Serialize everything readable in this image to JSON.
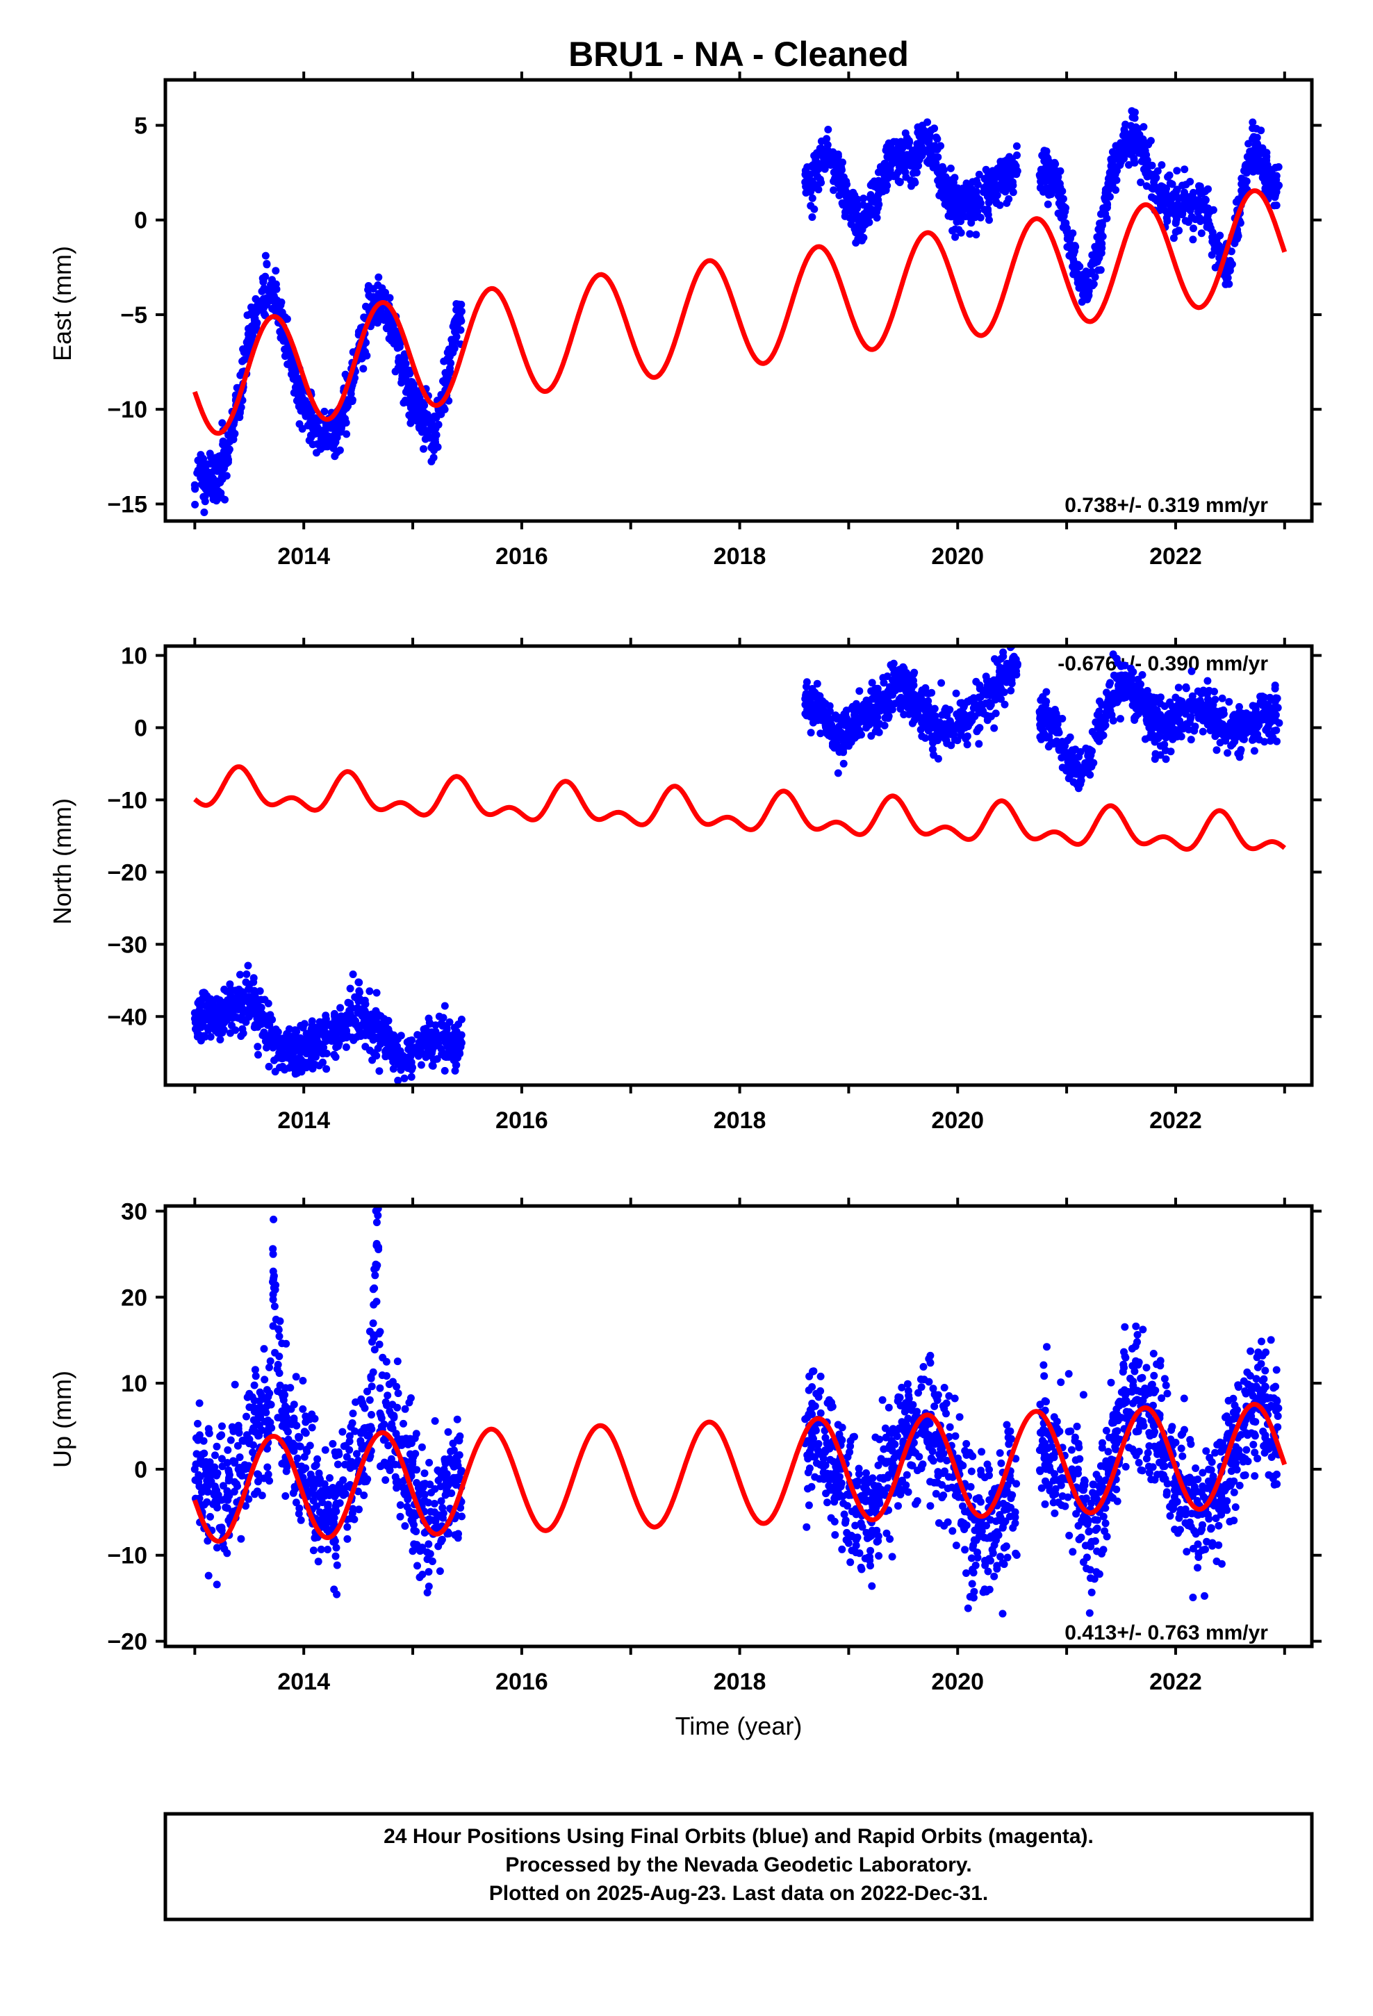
{
  "title": "BRU1  - NA - Cleaned",
  "xlabel": "Time (year)",
  "footer": {
    "line1": "24 Hour Positions Using Final Orbits (blue) and Rapid Orbits (magenta).",
    "line2": "Processed by the Nevada Geodetic Laboratory.",
    "line3": "Plotted on 2025-Aug-23. Last data on 2022-Dec-31."
  },
  "colors": {
    "data": "#0000ff",
    "model": "#ff0000",
    "frame": "#000000"
  },
  "chart_data": [
    {
      "type": "scatter",
      "panel": "east",
      "ylabel": "East (mm)",
      "rate_label": "0.738+/- 0.319 mm/yr",
      "xlim": [
        2012.73,
        2023.25
      ],
      "ylim": [
        -15.9,
        7.4
      ],
      "xticks": [
        2014,
        2016,
        2018,
        2020,
        2022
      ],
      "xtick_labels": [
        "2014",
        "2016",
        "2018",
        "2020",
        "2022"
      ],
      "yticks": [
        5,
        0,
        -5,
        -10,
        -15
      ],
      "ytick_labels": [
        "5",
        "0",
        "−5",
        "−10",
        "−15"
      ],
      "model": {
        "name": "",
        "intercept": -4.84,
        "t0": 2018.0,
        "slope": 0.738,
        "annual_amp": 2.9,
        "annual_phase_peak": 0.72
      },
      "series": [
        {
          "name": "",
          "segment": [
            2013.0,
            2013.25
          ],
          "points": [
            [
              2013.0,
              -14.0
            ],
            [
              2013.05,
              -13.0
            ],
            [
              2013.1,
              -14.2
            ],
            [
              2013.15,
              -13.4
            ],
            [
              2013.2,
              -13.8
            ],
            [
              2013.25,
              -13.1
            ]
          ]
        },
        {
          "name": "",
          "segment": [
            2013.25,
            2015.45
          ],
          "points": [
            [
              2013.3,
              -12.5
            ],
            [
              2013.4,
              -9.5
            ],
            [
              2013.5,
              -6.5
            ],
            [
              2013.6,
              -4.3
            ],
            [
              2013.7,
              -3.6
            ],
            [
              2013.8,
              -5.5
            ],
            [
              2013.9,
              -8.0
            ],
            [
              2014.0,
              -10.0
            ],
            [
              2014.1,
              -11.0
            ],
            [
              2014.2,
              -11.6
            ],
            [
              2014.3,
              -11.1
            ],
            [
              2014.4,
              -9.5
            ],
            [
              2014.5,
              -7.0
            ],
            [
              2014.6,
              -4.8
            ],
            [
              2014.7,
              -4.2
            ],
            [
              2014.8,
              -5.5
            ],
            [
              2014.9,
              -7.8
            ],
            [
              2015.0,
              -9.5
            ],
            [
              2015.1,
              -10.6
            ],
            [
              2015.2,
              -11.2
            ],
            [
              2015.3,
              -9.0
            ],
            [
              2015.4,
              -5.2
            ]
          ]
        },
        {
          "name": "",
          "segment": [
            2018.6,
            2020.55
          ],
          "points": [
            [
              2018.6,
              2.0
            ],
            [
              2018.7,
              2.5
            ],
            [
              2018.8,
              3.5
            ],
            [
              2018.9,
              2.5
            ],
            [
              2019.0,
              1.0
            ],
            [
              2019.1,
              -0.5
            ],
            [
              2019.4,
              3.0
            ],
            [
              2019.6,
              3.2
            ],
            [
              2019.7,
              4.2
            ],
            [
              2019.8,
              3.0
            ],
            [
              2019.9,
              1.5
            ],
            [
              2020.0,
              0.8
            ],
            [
              2020.1,
              0.8
            ],
            [
              2020.2,
              1.0
            ],
            [
              2020.3,
              1.8
            ],
            [
              2020.4,
              2.2
            ],
            [
              2020.5,
              2.5
            ]
          ]
        },
        {
          "name": "",
          "segment": [
            2020.75,
            2022.95
          ],
          "points": [
            [
              2020.8,
              2.5
            ],
            [
              2020.9,
              2.2
            ],
            [
              2021.0,
              -0.5
            ],
            [
              2021.1,
              -3.0
            ],
            [
              2021.2,
              -3.5
            ],
            [
              2021.3,
              -1.5
            ],
            [
              2021.4,
              2.0
            ],
            [
              2021.5,
              3.8
            ],
            [
              2021.6,
              4.5
            ],
            [
              2021.7,
              3.8
            ],
            [
              2021.8,
              2.0
            ],
            [
              2021.9,
              1.0
            ],
            [
              2022.0,
              0.5
            ],
            [
              2022.1,
              1.0
            ],
            [
              2022.2,
              0.8
            ],
            [
              2022.3,
              0.5
            ],
            [
              2022.4,
              -2.0
            ],
            [
              2022.5,
              -2.5
            ],
            [
              2022.6,
              1.0
            ],
            [
              2022.7,
              3.5
            ],
            [
              2022.8,
              3.0
            ],
            [
              2022.9,
              1.5
            ]
          ]
        }
      ]
    },
    {
      "type": "scatter",
      "panel": "north",
      "ylabel": "North (mm)",
      "rate_label": "-0.676+/- 0.390 mm/yr",
      "xlim": [
        2012.73,
        2023.25
      ],
      "ylim": [
        -49.5,
        11.3
      ],
      "xticks": [
        2014,
        2016,
        2018,
        2020,
        2022
      ],
      "xtick_labels": [
        "2014",
        "2016",
        "2018",
        "2020",
        "2022"
      ],
      "yticks": [
        10,
        0,
        -10,
        -20,
        -30,
        -40
      ],
      "ytick_labels": [
        "10",
        "0",
        "−10",
        "−20",
        "−30",
        "−40"
      ],
      "model": {
        "name": "",
        "intercept": -12.0,
        "t0": 2018.0,
        "slope": -0.676,
        "annual_amp": 2.0,
        "annual_phase_peak": 0.42,
        "semiannual_amp": 1.5,
        "semiannual_phase_peak": 0.4
      },
      "series": [
        {
          "name": "",
          "segment": [
            2013.0,
            2015.45
          ],
          "points": [
            [
              2013.0,
              -39.5
            ],
            [
              2013.2,
              -40.0
            ],
            [
              2013.4,
              -38.5
            ],
            [
              2013.5,
              -37.5
            ],
            [
              2013.6,
              -40.0
            ],
            [
              2013.7,
              -43.0
            ],
            [
              2013.8,
              -44.5
            ],
            [
              2013.9,
              -45.0
            ],
            [
              2014.0,
              -44.5
            ],
            [
              2014.2,
              -43.0
            ],
            [
              2014.4,
              -41.0
            ],
            [
              2014.5,
              -39.5
            ],
            [
              2014.6,
              -40.5
            ],
            [
              2014.7,
              -42.0
            ],
            [
              2014.8,
              -44.0
            ],
            [
              2014.9,
              -46.0
            ],
            [
              2015.0,
              -45.0
            ],
            [
              2015.1,
              -43.5
            ],
            [
              2015.2,
              -43.0
            ],
            [
              2015.3,
              -43.0
            ],
            [
              2015.4,
              -44.0
            ]
          ]
        },
        {
          "name": "",
          "segment": [
            2018.6,
            2020.55
          ],
          "points": [
            [
              2018.6,
              4.0
            ],
            [
              2018.7,
              2.5
            ],
            [
              2018.8,
              0.5
            ],
            [
              2018.9,
              -1.0
            ],
            [
              2019.0,
              -0.5
            ],
            [
              2019.1,
              1.0
            ],
            [
              2019.3,
              3.0
            ],
            [
              2019.4,
              5.0
            ],
            [
              2019.5,
              6.0
            ],
            [
              2019.7,
              1.5
            ],
            [
              2019.8,
              0.0
            ],
            [
              2019.9,
              -0.5
            ],
            [
              2020.0,
              0.5
            ],
            [
              2020.1,
              1.5
            ],
            [
              2020.2,
              3.0
            ],
            [
              2020.3,
              4.5
            ],
            [
              2020.4,
              6.5
            ],
            [
              2020.5,
              8.5
            ]
          ]
        },
        {
          "name": "",
          "segment": [
            2020.75,
            2022.95
          ],
          "points": [
            [
              2020.8,
              1.0
            ],
            [
              2020.9,
              0.5
            ],
            [
              2021.0,
              -4.0
            ],
            [
              2021.1,
              -6.0
            ],
            [
              2021.2,
              -4.0
            ],
            [
              2021.3,
              0.0
            ],
            [
              2021.4,
              4.0
            ],
            [
              2021.5,
              6.0
            ],
            [
              2021.6,
              4.5
            ],
            [
              2021.7,
              3.0
            ],
            [
              2021.8,
              0.5
            ],
            [
              2021.9,
              -0.5
            ],
            [
              2022.0,
              1.0
            ],
            [
              2022.1,
              2.5
            ],
            [
              2022.2,
              3.0
            ],
            [
              2022.3,
              2.0
            ],
            [
              2022.4,
              0.5
            ],
            [
              2022.5,
              -0.5
            ],
            [
              2022.6,
              0.0
            ],
            [
              2022.7,
              1.0
            ],
            [
              2022.8,
              1.5
            ],
            [
              2022.9,
              2.0
            ]
          ]
        }
      ]
    },
    {
      "type": "scatter",
      "panel": "up",
      "ylabel": "Up (mm)",
      "rate_label": "0.413+/- 0.763 mm/yr",
      "xlim": [
        2012.73,
        2023.25
      ],
      "ylim": [
        -20.6,
        30.6
      ],
      "xticks": [
        2014,
        2016,
        2018,
        2020,
        2022
      ],
      "xtick_labels": [
        "2014",
        "2016",
        "2018",
        "2020",
        "2022"
      ],
      "yticks": [
        30,
        20,
        10,
        0,
        -10,
        -20
      ],
      "ytick_labels": [
        "30",
        "20",
        "10",
        "0",
        "−10",
        "−20"
      ],
      "model": {
        "name": "",
        "intercept": -0.4,
        "t0": 2018.0,
        "slope": 0.413,
        "annual_amp": 6.0,
        "annual_phase_peak": 0.72
      },
      "series": [
        {
          "name": "",
          "segment": [
            2013.0,
            2015.45
          ],
          "points": [
            [
              2013.0,
              0.0
            ],
            [
              2013.1,
              -2.0
            ],
            [
              2013.2,
              -4.0
            ],
            [
              2013.3,
              -3.0
            ],
            [
              2013.4,
              0.0
            ],
            [
              2013.5,
              3.0
            ],
            [
              2013.6,
              6.0
            ],
            [
              2013.7,
              7.5
            ],
            [
              2013.8,
              6.0
            ],
            [
              2013.9,
              3.0
            ],
            [
              2014.0,
              0.0
            ],
            [
              2014.1,
              -3.0
            ],
            [
              2014.2,
              -5.0
            ],
            [
              2014.3,
              -4.0
            ],
            [
              2014.4,
              -2.0
            ],
            [
              2014.5,
              1.0
            ],
            [
              2014.6,
              4.0
            ],
            [
              2014.7,
              6.5
            ],
            [
              2014.8,
              5.0
            ],
            [
              2014.9,
              1.0
            ],
            [
              2015.0,
              -3.0
            ],
            [
              2015.1,
              -6.0
            ],
            [
              2015.2,
              -5.0
            ],
            [
              2015.3,
              -3.0
            ],
            [
              2015.4,
              -1.0
            ],
            [
              2014.68,
              29.5
            ],
            [
              2013.72,
              23.0
            ]
          ]
        },
        {
          "name": "",
          "segment": [
            2018.6,
            2020.55
          ],
          "points": [
            [
              2018.6,
              3.0
            ],
            [
              2018.7,
              4.5
            ],
            [
              2018.8,
              3.0
            ],
            [
              2018.9,
              0.0
            ],
            [
              2019.0,
              -3.0
            ],
            [
              2019.1,
              -5.0
            ],
            [
              2019.2,
              -6.0
            ],
            [
              2019.3,
              -3.0
            ],
            [
              2019.4,
              0.0
            ],
            [
              2019.5,
              3.0
            ],
            [
              2019.6,
              5.0
            ],
            [
              2019.7,
              6.0
            ],
            [
              2019.8,
              4.0
            ],
            [
              2019.9,
              1.0
            ],
            [
              2020.0,
              -2.0
            ],
            [
              2020.1,
              -5.0
            ],
            [
              2020.2,
              -7.0
            ],
            [
              2020.3,
              -8.0
            ],
            [
              2020.4,
              -6.0
            ],
            [
              2020.5,
              -3.0
            ]
          ]
        },
        {
          "name": "",
          "segment": [
            2020.75,
            2022.95
          ],
          "points": [
            [
              2020.8,
              3.0
            ],
            [
              2020.9,
              2.0
            ],
            [
              2021.0,
              -1.0
            ],
            [
              2021.1,
              -4.0
            ],
            [
              2021.2,
              -6.0
            ],
            [
              2021.3,
              -5.0
            ],
            [
              2021.4,
              0.0
            ],
            [
              2021.5,
              6.0
            ],
            [
              2021.6,
              9.0
            ],
            [
              2021.7,
              8.0
            ],
            [
              2021.8,
              5.0
            ],
            [
              2021.9,
              2.0
            ],
            [
              2022.0,
              -1.0
            ],
            [
              2022.1,
              -3.0
            ],
            [
              2022.2,
              -5.0
            ],
            [
              2022.3,
              -4.0
            ],
            [
              2022.4,
              -2.0
            ],
            [
              2022.5,
              1.0
            ],
            [
              2022.6,
              4.0
            ],
            [
              2022.7,
              7.0
            ],
            [
              2022.8,
              8.0
            ],
            [
              2022.9,
              4.0
            ]
          ]
        }
      ]
    }
  ]
}
